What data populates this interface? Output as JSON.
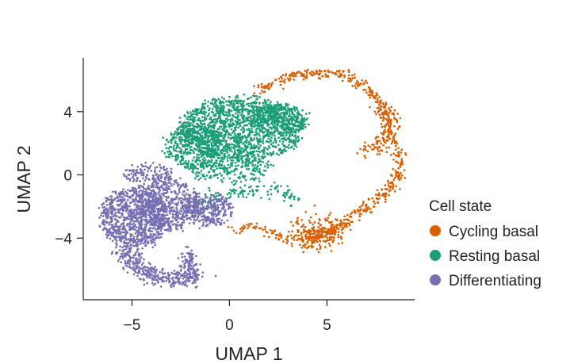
{
  "chart_data": {
    "type": "scatter",
    "title": "",
    "xlabel": "UMAP 1",
    "ylabel": "UMAP 2",
    "xlim": [
      -7.5,
      9.5
    ],
    "ylim": [
      -7.9,
      7.4
    ],
    "x_ticks": [
      {
        "value": -5,
        "label": "−5"
      },
      {
        "value": 0,
        "label": "0"
      },
      {
        "value": 5,
        "label": "5"
      }
    ],
    "y_ticks": [
      {
        "value": 4,
        "label": "4"
      },
      {
        "value": 0,
        "label": "0"
      },
      {
        "value": -4,
        "label": "−4"
      }
    ],
    "grid": false,
    "legend": {
      "title": "Cell state",
      "placement": "right"
    },
    "series": [
      {
        "name": "Cycling basal",
        "color": "#d95f02",
        "regions": [
          {
            "path": [
              [
                1.5,
                5.2
              ],
              [
                3.2,
                6.3
              ],
              [
                5.0,
                6.5
              ],
              [
                6.3,
                6.2
              ],
              [
                7.3,
                5.2
              ],
              [
                8.0,
                3.6
              ],
              [
                8.6,
                1.6
              ],
              [
                8.8,
                0.5
              ],
              [
                8.3,
                -0.8
              ],
              [
                7.2,
                -1.8
              ],
              [
                6.3,
                -2.6
              ],
              [
                5.6,
                -3.3
              ],
              [
                4.7,
                -3.9
              ],
              [
                3.6,
                -4.2
              ],
              [
                2.4,
                -3.9
              ],
              [
                1.3,
                -3.2
              ],
              [
                0.2,
                -3.6
              ]
            ],
            "spread": 0.18,
            "count": 560
          },
          {
            "path": [
              [
                3.7,
                -3.6
              ],
              [
                4.8,
                -3.9
              ],
              [
                5.4,
                -3.2
              ]
            ],
            "spread": 0.45,
            "count": 240
          },
          {
            "path": [
              [
                6.9,
                1.5
              ],
              [
                7.9,
                1.8
              ],
              [
                8.3,
                3.5
              ],
              [
                7.8,
                4.5
              ]
            ],
            "spread": 0.25,
            "count": 120
          }
        ]
      },
      {
        "name": "Resting basal",
        "color": "#1b9e77",
        "regions": [
          {
            "ellipses": [
              {
                "cx": 0.6,
                "cy": 2.9,
                "rx": 3.2,
                "ry": 2.0,
                "count": 1500
              },
              {
                "cx": -1.8,
                "cy": 1.8,
                "rx": 1.6,
                "ry": 1.4,
                "count": 380
              },
              {
                "cx": 2.5,
                "cy": 3.6,
                "rx": 1.5,
                "ry": 1.0,
                "count": 260
              },
              {
                "cx": 0.0,
                "cy": 0.4,
                "rx": 2.2,
                "ry": 0.8,
                "count": 240
              }
            ]
          },
          {
            "path": [
              [
                -1.8,
                -1.8
              ],
              [
                0.2,
                -1.0
              ],
              [
                2.6,
                -1.0
              ],
              [
                3.6,
                -1.8
              ]
            ],
            "spread": 0.25,
            "count": 110
          }
        ]
      },
      {
        "name": "Differentiating",
        "color": "#7570b3",
        "regions": [
          {
            "ellipses": [
              {
                "cx": -4.9,
                "cy": -2.7,
                "rx": 1.7,
                "ry": 1.9,
                "count": 900
              },
              {
                "cx": -3.1,
                "cy": -1.9,
                "rx": 1.6,
                "ry": 1.6,
                "count": 520
              },
              {
                "cx": -1.1,
                "cy": -2.2,
                "rx": 1.3,
                "ry": 0.9,
                "count": 300
              },
              {
                "cx": -4.2,
                "cy": 0.0,
                "rx": 1.2,
                "ry": 0.7,
                "count": 150
              }
            ]
          },
          {
            "path": [
              [
                -5.5,
                -4.7
              ],
              [
                -4.8,
                -5.9
              ],
              [
                -3.6,
                -6.5
              ],
              [
                -2.4,
                -6.6
              ],
              [
                -1.6,
                -6.2
              ]
            ],
            "spread": 0.28,
            "count": 380
          },
          {
            "path": [
              [
                -2.1,
                -4.8
              ],
              [
                -2.0,
                -5.9
              ]
            ],
            "spread": 0.22,
            "count": 70
          }
        ]
      }
    ]
  }
}
